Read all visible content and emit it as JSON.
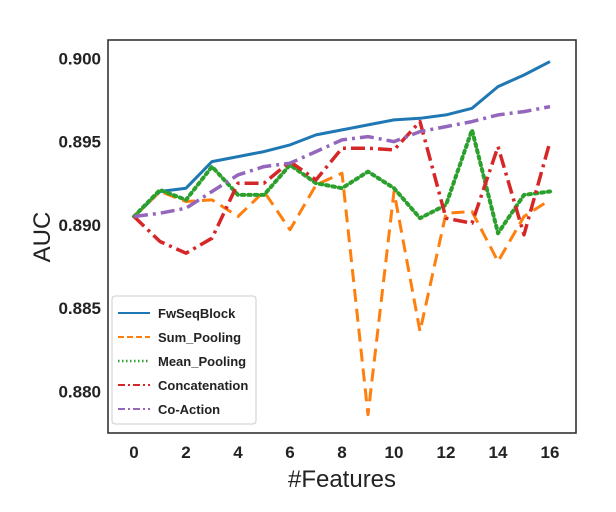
{
  "chart_data": {
    "type": "line",
    "xlabel": "#Features",
    "ylabel": "AUC",
    "xlim": [
      -1,
      17
    ],
    "ylim": [
      0.8775,
      0.9011
    ],
    "xticks": [
      0,
      2,
      4,
      6,
      8,
      10,
      12,
      14,
      16
    ],
    "yticks": [
      0.88,
      0.885,
      0.89,
      0.895,
      0.9
    ],
    "ytick_labels": [
      "0.880",
      "0.885",
      "0.890",
      "0.895",
      "0.900"
    ],
    "grid": false,
    "legend_position": "lower-left",
    "x": [
      0,
      1,
      2,
      3,
      4,
      5,
      6,
      7,
      8,
      9,
      10,
      11,
      12,
      13,
      14,
      15,
      16
    ],
    "series": [
      {
        "name": "FwSeqBlock",
        "color": "#1f77b4",
        "style": "solid",
        "values": [
          0.8905,
          0.892,
          0.8922,
          0.8938,
          0.8941,
          0.8944,
          0.8948,
          0.8954,
          0.8957,
          0.896,
          0.8963,
          0.8964,
          0.8966,
          0.897,
          0.8983,
          0.899,
          0.8998
        ]
      },
      {
        "name": "Sum_Pooling",
        "color": "#ff7f0e",
        "style": "dashed",
        "values": [
          0.8905,
          0.892,
          0.8914,
          0.8915,
          0.8905,
          0.892,
          0.8897,
          0.8924,
          0.8931,
          0.8786,
          0.892,
          0.8836,
          0.8907,
          0.8908,
          0.8878,
          0.8905,
          0.8915
        ]
      },
      {
        "name": "Mean_Pooling",
        "color": "#2ca02c",
        "style": "dotted",
        "values": [
          0.8905,
          0.8921,
          0.8915,
          0.8935,
          0.8918,
          0.8918,
          0.8936,
          0.8925,
          0.8922,
          0.8932,
          0.8922,
          0.8904,
          0.8912,
          0.8957,
          0.8895,
          0.8918,
          0.892
        ]
      },
      {
        "name": "Concatenation",
        "color": "#d62728",
        "style": "dashdot",
        "values": [
          0.8905,
          0.889,
          0.8883,
          0.8892,
          0.8925,
          0.8925,
          0.8938,
          0.8927,
          0.8946,
          0.8946,
          0.8945,
          0.8962,
          0.8904,
          0.8901,
          0.8947,
          0.8894,
          0.895
        ]
      },
      {
        "name": "Co-Action",
        "color": "#9467bd",
        "style": "dashdot",
        "values": [
          0.8905,
          0.8907,
          0.891,
          0.892,
          0.893,
          0.8935,
          0.8937,
          0.8944,
          0.8951,
          0.8953,
          0.895,
          0.8956,
          0.8959,
          0.8962,
          0.8966,
          0.8968,
          0.8971
        ]
      }
    ]
  }
}
